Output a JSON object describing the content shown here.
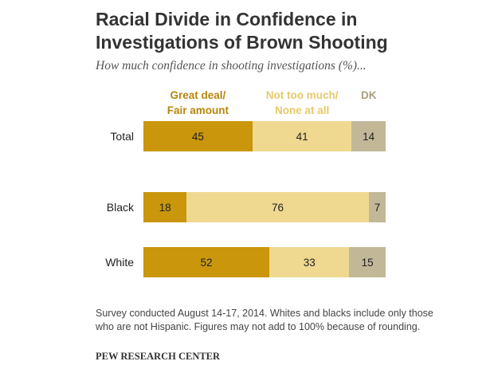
{
  "header": {
    "title_line1": "Racial Divide in Confidence in",
    "title_line2": "Investigations of Brown Shooting",
    "subtitle": "How much confidence in shooting investigations (%)..."
  },
  "chart_data": {
    "type": "bar",
    "orientation": "horizontal-stacked",
    "categories": [
      "Total",
      "Black",
      "White"
    ],
    "series": [
      {
        "name": "Great deal/\nFair amount",
        "values": [
          45,
          18,
          52
        ],
        "color": "#c9960c"
      },
      {
        "name": "Not too much/\nNone at all",
        "values": [
          41,
          76,
          33
        ],
        "color": "#efd890"
      },
      {
        "name": "DK",
        "values": [
          14,
          7,
          15
        ],
        "color": "#c2b898"
      }
    ],
    "legend_position": "top",
    "grid": false
  },
  "legend_colors": [
    "#b8860b",
    "#e8c96a",
    "#a89f82"
  ],
  "footer": {
    "note": "Survey conducted August 14-17, 2014. Whites and blacks include only those who are not Hispanic. Figures may not add to 100% because of rounding.",
    "source": "PEW RESEARCH CENTER"
  }
}
